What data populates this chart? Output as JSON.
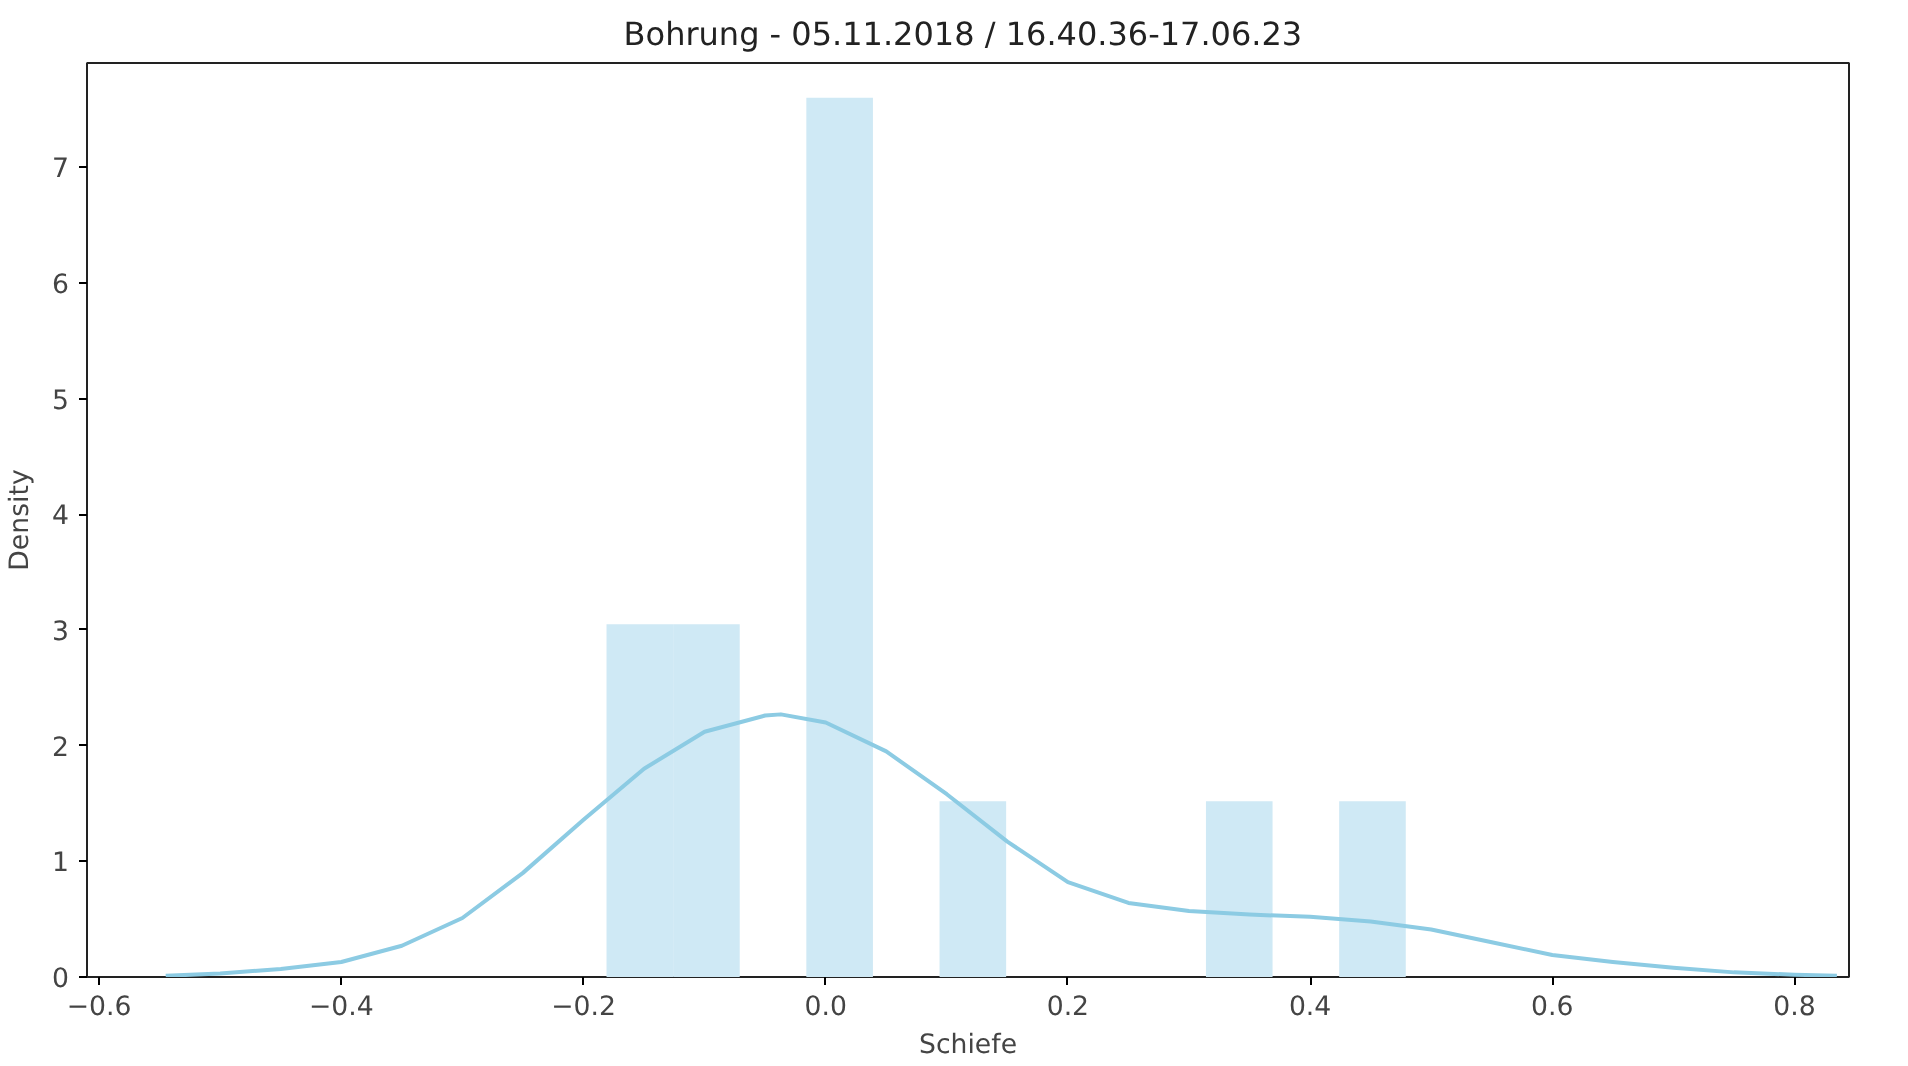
{
  "chart_data": {
    "type": "histogram",
    "title": "Bohrung - 05.11.2018 /  16.40.36-17.06.23",
    "xlabel": "Schiefe",
    "ylabel": "Density",
    "xlim": [
      -0.61,
      0.845
    ],
    "ylim": [
      0,
      7.9
    ],
    "xticks": [
      {
        "value": -0.6,
        "label": "−0.6"
      },
      {
        "value": -0.4,
        "label": "−0.4"
      },
      {
        "value": -0.2,
        "label": "−0.2"
      },
      {
        "value": 0.0,
        "label": "0.0"
      },
      {
        "value": 0.2,
        "label": "0.2"
      },
      {
        "value": 0.4,
        "label": "0.4"
      },
      {
        "value": 0.6,
        "label": "0.6"
      },
      {
        "value": 0.8,
        "label": "0.8"
      }
    ],
    "yticks": [
      0,
      1,
      2,
      3,
      4,
      5,
      6,
      7
    ],
    "grid": false,
    "series": [
      {
        "color": "#cfe9f5",
        "bins": [
          -0.181,
          -0.126,
          -0.071,
          -0.016,
          0.039,
          0.094,
          0.149,
          0.204,
          0.259,
          0.314,
          0.369,
          0.424,
          0.479
        ],
        "values": [
          3.05,
          3.05,
          0,
          7.6,
          0,
          1.52,
          0,
          0,
          0,
          1.52,
          0,
          1.52
        ]
      },
      {
        "type": "line",
        "color": "#8ccbe3",
        "x": [
          -0.545,
          -0.5,
          -0.45,
          -0.4,
          -0.35,
          -0.3,
          -0.25,
          -0.2,
          -0.15,
          -0.1,
          -0.05,
          -0.037,
          0.0,
          0.05,
          0.1,
          0.15,
          0.2,
          0.25,
          0.3,
          0.35,
          0.4,
          0.45,
          0.5,
          0.55,
          0.6,
          0.65,
          0.7,
          0.75,
          0.8,
          0.835
        ],
        "values": [
          0.01,
          0.03,
          0.07,
          0.13,
          0.27,
          0.51,
          0.9,
          1.36,
          1.8,
          2.12,
          2.26,
          2.27,
          2.2,
          1.95,
          1.58,
          1.17,
          0.82,
          0.64,
          0.57,
          0.54,
          0.52,
          0.48,
          0.41,
          0.3,
          0.19,
          0.13,
          0.08,
          0.04,
          0.02,
          0.01
        ]
      }
    ]
  }
}
